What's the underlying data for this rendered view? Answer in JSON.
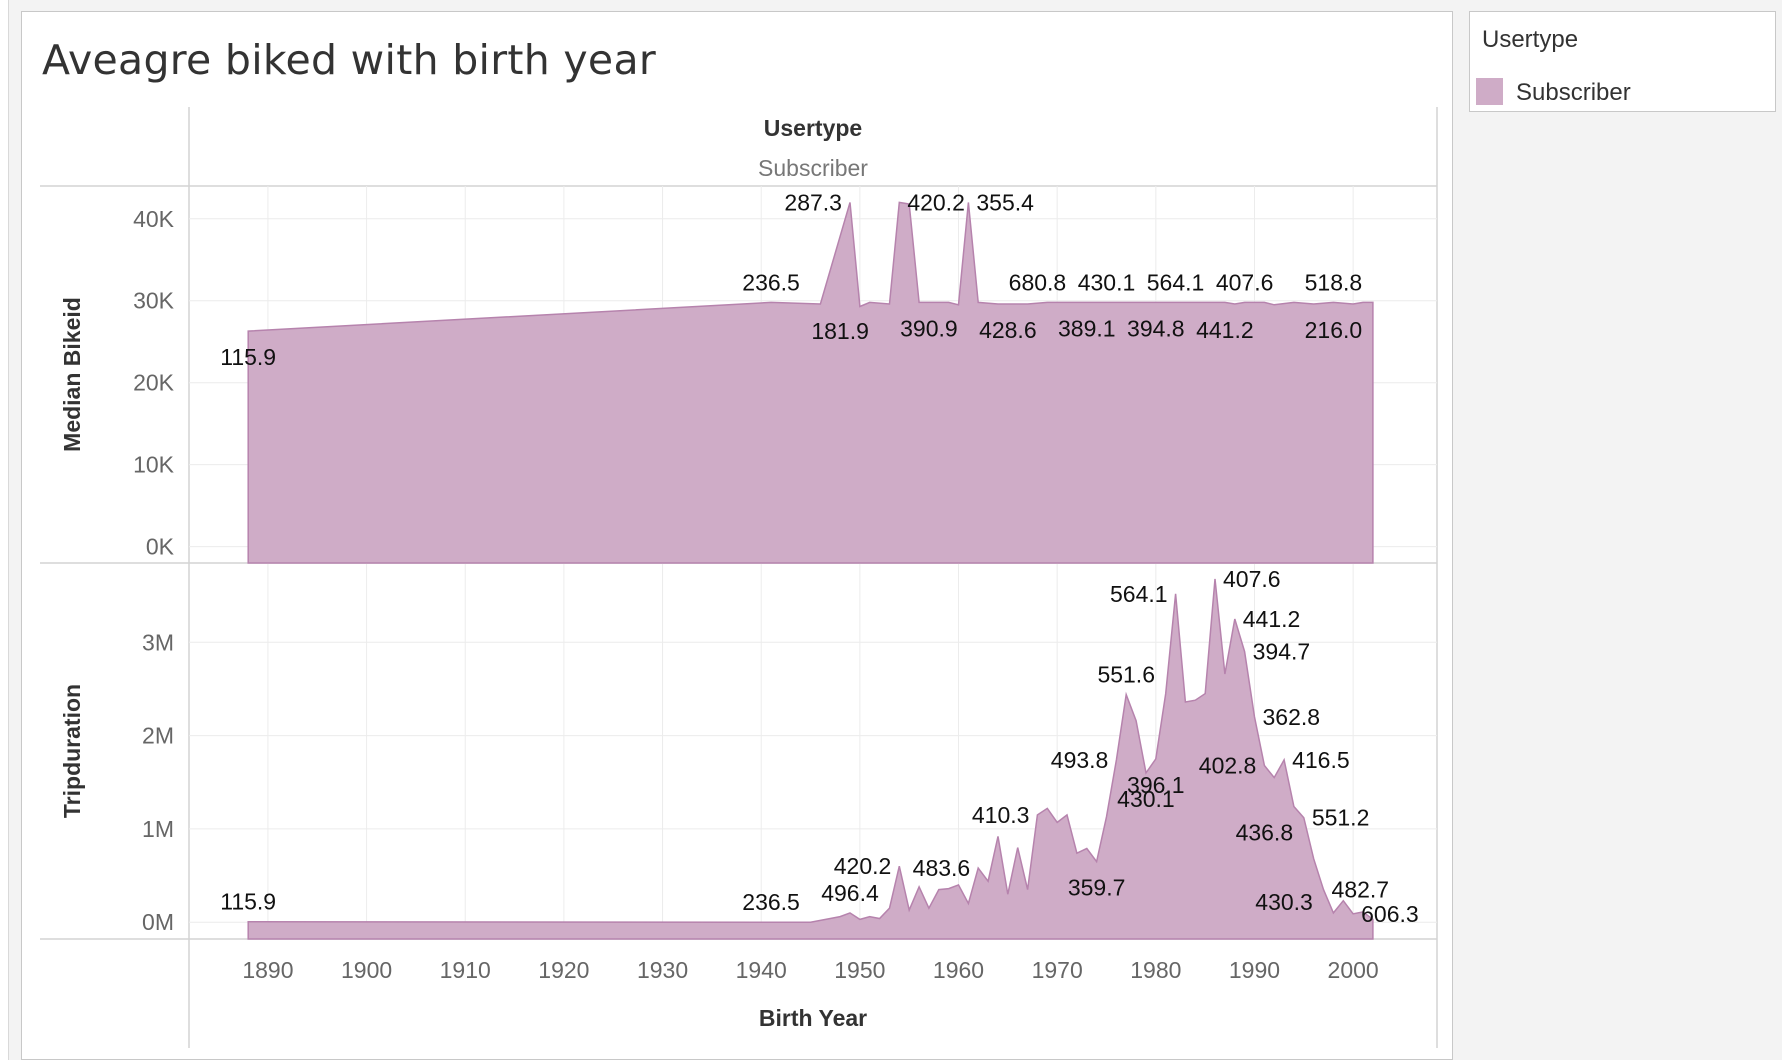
{
  "title": "Aveagre biked with birth year",
  "legend": {
    "title": "Usertype",
    "items": [
      {
        "label": "Subscriber",
        "color": "#cfacc7"
      }
    ]
  },
  "chart_data": {
    "type": "area",
    "column_header": {
      "title": "Usertype",
      "value": "Subscriber"
    },
    "xlabel": "Birth Year",
    "x_ticks": [
      "1890",
      "1900",
      "1910",
      "1920",
      "1930",
      "1940",
      "1950",
      "1960",
      "1970",
      "1980",
      "1990",
      "2000"
    ],
    "fill_color": "#cfacc7",
    "line_color": "#b683ad",
    "panels": [
      {
        "ylabel": "Median Bikeid",
        "ylim": [
          -2000,
          44000
        ],
        "y_ticks": [
          {
            "value": 0,
            "label": "0K"
          },
          {
            "value": 10000,
            "label": "10K"
          },
          {
            "value": 20000,
            "label": "20K"
          },
          {
            "value": 30000,
            "label": "30K"
          },
          {
            "value": 40000,
            "label": "40K"
          }
        ],
        "points": [
          [
            1888,
            26300
          ],
          [
            1941,
            29800
          ],
          [
            1946,
            29600
          ],
          [
            1949,
            42000
          ],
          [
            1950,
            29300
          ],
          [
            1951,
            29800
          ],
          [
            1953,
            29600
          ],
          [
            1954,
            42000
          ],
          [
            1955,
            41800
          ],
          [
            1956,
            29800
          ],
          [
            1959,
            29800
          ],
          [
            1960,
            29500
          ],
          [
            1961,
            42000
          ],
          [
            1962,
            29800
          ],
          [
            1964,
            29600
          ],
          [
            1967,
            29600
          ],
          [
            1969,
            29800
          ],
          [
            1987,
            29800
          ],
          [
            1988,
            29600
          ],
          [
            1989,
            29800
          ],
          [
            1991,
            29800
          ],
          [
            1992,
            29500
          ],
          [
            1994,
            29800
          ],
          [
            1996,
            29600
          ],
          [
            1998,
            29800
          ],
          [
            2000,
            29600
          ],
          [
            2001,
            29800
          ],
          [
            2002,
            29800
          ]
        ],
        "labels": [
          {
            "text": "115.9",
            "x": 1888,
            "y": 26300,
            "pos": "below"
          },
          {
            "text": "236.5",
            "x": 1941,
            "y": 29800,
            "pos": "above"
          },
          {
            "text": "287.3",
            "x": 1949,
            "y": 42000,
            "pos": "left"
          },
          {
            "text": "181.9",
            "x": 1948,
            "y": 29500,
            "pos": "below"
          },
          {
            "text": "420.2",
            "x": 1954,
            "y": 42000,
            "pos": "right"
          },
          {
            "text": "390.9",
            "x": 1957,
            "y": 29800,
            "pos": "below"
          },
          {
            "text": "355.4",
            "x": 1961,
            "y": 42000,
            "pos": "right"
          },
          {
            "text": "680.8",
            "x": 1968,
            "y": 29800,
            "pos": "above"
          },
          {
            "text": "428.6",
            "x": 1965,
            "y": 29600,
            "pos": "below"
          },
          {
            "text": "430.1",
            "x": 1975,
            "y": 29800,
            "pos": "above"
          },
          {
            "text": "389.1",
            "x": 1973,
            "y": 29800,
            "pos": "below"
          },
          {
            "text": "564.1",
            "x": 1982,
            "y": 29800,
            "pos": "above"
          },
          {
            "text": "394.8",
            "x": 1980,
            "y": 29800,
            "pos": "below"
          },
          {
            "text": "407.6",
            "x": 1989,
            "y": 29800,
            "pos": "above"
          },
          {
            "text": "441.2",
            "x": 1987,
            "y": 29600,
            "pos": "below"
          },
          {
            "text": "518.8",
            "x": 1998,
            "y": 29800,
            "pos": "above"
          },
          {
            "text": "216.0",
            "x": 1998,
            "y": 29600,
            "pos": "below"
          }
        ]
      },
      {
        "ylabel": "Tripduration",
        "ylim": [
          -180000,
          3850000
        ],
        "y_ticks": [
          {
            "value": 0,
            "label": "0M"
          },
          {
            "value": 1000000,
            "label": "1M"
          },
          {
            "value": 2000000,
            "label": "2M"
          },
          {
            "value": 3000000,
            "label": "3M"
          }
        ],
        "points": [
          [
            1888,
            5000
          ],
          [
            1941,
            0
          ],
          [
            1945,
            0
          ],
          [
            1947,
            40000
          ],
          [
            1948,
            60000
          ],
          [
            1949,
            100000
          ],
          [
            1950,
            30000
          ],
          [
            1951,
            60000
          ],
          [
            1952,
            40000
          ],
          [
            1953,
            150000
          ],
          [
            1954,
            600000
          ],
          [
            1955,
            130000
          ],
          [
            1956,
            380000
          ],
          [
            1957,
            150000
          ],
          [
            1958,
            350000
          ],
          [
            1959,
            360000
          ],
          [
            1960,
            400000
          ],
          [
            1961,
            200000
          ],
          [
            1962,
            580000
          ],
          [
            1963,
            440000
          ],
          [
            1964,
            920000
          ],
          [
            1965,
            300000
          ],
          [
            1966,
            800000
          ],
          [
            1967,
            350000
          ],
          [
            1968,
            1150000
          ],
          [
            1969,
            1220000
          ],
          [
            1970,
            1070000
          ],
          [
            1971,
            1150000
          ],
          [
            1972,
            740000
          ],
          [
            1973,
            790000
          ],
          [
            1974,
            650000
          ],
          [
            1975,
            1130000
          ],
          [
            1976,
            1740000
          ],
          [
            1977,
            2440000
          ],
          [
            1978,
            2160000
          ],
          [
            1979,
            1600000
          ],
          [
            1980,
            1750000
          ],
          [
            1981,
            2450000
          ],
          [
            1982,
            3520000
          ],
          [
            1983,
            2360000
          ],
          [
            1984,
            2380000
          ],
          [
            1985,
            2450000
          ],
          [
            1986,
            3680000
          ],
          [
            1987,
            2660000
          ],
          [
            1988,
            3250000
          ],
          [
            1989,
            2900000
          ],
          [
            1990,
            2200000
          ],
          [
            1991,
            1680000
          ],
          [
            1992,
            1550000
          ],
          [
            1993,
            1740000
          ],
          [
            1994,
            1240000
          ],
          [
            1995,
            1120000
          ],
          [
            1996,
            680000
          ],
          [
            1997,
            350000
          ],
          [
            1998,
            100000
          ],
          [
            1999,
            230000
          ],
          [
            2000,
            90000
          ],
          [
            2001,
            110000
          ],
          [
            2002,
            30000
          ]
        ],
        "labels": [
          {
            "text": "115.9",
            "x": 1888,
            "y": 5000,
            "pos": "above"
          },
          {
            "text": "236.5",
            "x": 1941,
            "y": 0,
            "pos": "above"
          },
          {
            "text": "496.4",
            "x": 1949,
            "y": 100000,
            "pos": "above"
          },
          {
            "text": "420.2",
            "x": 1954,
            "y": 600000,
            "pos": "left"
          },
          {
            "text": "483.6",
            "x": 1962,
            "y": 580000,
            "pos": "left"
          },
          {
            "text": "410.3",
            "x": 1968,
            "y": 1150000,
            "pos": "left"
          },
          {
            "text": "359.7",
            "x": 1974,
            "y": 650000,
            "pos": "below"
          },
          {
            "text": "493.8",
            "x": 1976,
            "y": 1740000,
            "pos": "left"
          },
          {
            "text": "551.6",
            "x": 1977,
            "y": 2440000,
            "pos": "above"
          },
          {
            "text": "430.1",
            "x": 1979,
            "y": 1600000,
            "pos": "below"
          },
          {
            "text": "396.1",
            "x": 1980,
            "y": 1750000,
            "pos": "below"
          },
          {
            "text": "564.1",
            "x": 1982,
            "y": 3520000,
            "pos": "left"
          },
          {
            "text": "407.6",
            "x": 1986,
            "y": 3680000,
            "pos": "right"
          },
          {
            "text": "441.2",
            "x": 1988,
            "y": 3250000,
            "pos": "right"
          },
          {
            "text": "394.7",
            "x": 1989,
            "y": 2900000,
            "pos": "right"
          },
          {
            "text": "362.8",
            "x": 1990,
            "y": 2200000,
            "pos": "right"
          },
          {
            "text": "402.8",
            "x": 1991,
            "y": 1680000,
            "pos": "left"
          },
          {
            "text": "416.5",
            "x": 1993,
            "y": 1740000,
            "pos": "right"
          },
          {
            "text": "436.8",
            "x": 1991,
            "y": 1240000,
            "pos": "below"
          },
          {
            "text": "551.2",
            "x": 1995,
            "y": 1120000,
            "pos": "right"
          },
          {
            "text": "482.7",
            "x": 1997,
            "y": 350000,
            "pos": "right"
          },
          {
            "text": "430.3",
            "x": 1993,
            "y": 0,
            "pos": "above"
          },
          {
            "text": "606.3",
            "x": 2000,
            "y": 90000,
            "pos": "right"
          }
        ]
      }
    ]
  }
}
